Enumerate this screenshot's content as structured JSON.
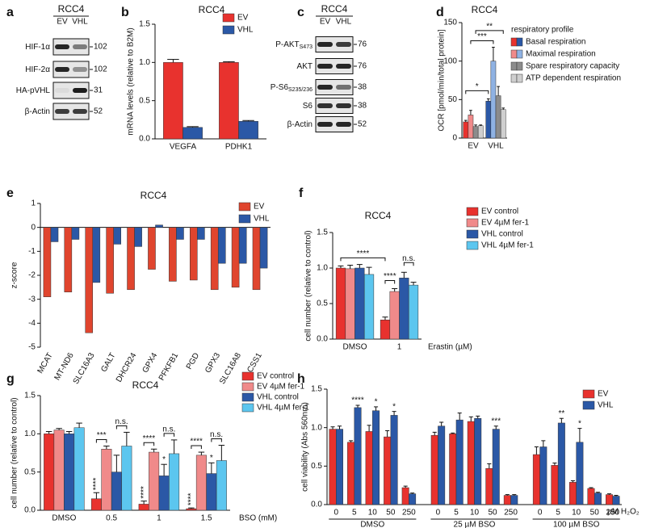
{
  "panel_letters": [
    "a",
    "b",
    "c",
    "d",
    "e",
    "f",
    "g",
    "h"
  ],
  "blots": [
    {
      "title": "RCC4",
      "lanes": [
        "EV",
        "VHL"
      ],
      "rows": [
        {
          "label": "HIF-1α",
          "marker": 102
        },
        {
          "label": "HIF-2α",
          "marker": 102
        },
        {
          "label": "HA-pVHL",
          "marker": 31
        },
        {
          "label": "β-Actin",
          "marker": 52
        }
      ]
    },
    {
      "title": "RCC4",
      "lanes": [
        "EV",
        "VHL"
      ],
      "rows": [
        {
          "label": "P-AKT",
          "sub": "S473",
          "marker": 76
        },
        {
          "label": "AKT",
          "marker": 76
        },
        {
          "label": "P-S6",
          "sub": "S235/236",
          "marker": 38
        },
        {
          "label": "S6",
          "marker": 38
        },
        {
          "label": "β-Actin",
          "marker": 52
        }
      ]
    }
  ],
  "chart_data": [
    {
      "type": "bar",
      "title": "RCC4",
      "ylabel": "mRNA levels (relative to B2M)",
      "categories": [
        "VEGFA",
        "PDHK1"
      ],
      "series": [
        {
          "name": "EV",
          "color": "#e8322e",
          "values": [
            1.0,
            1.0
          ],
          "errors": [
            0.04,
            0.01
          ]
        },
        {
          "name": "VHL",
          "color": "#2b58a6",
          "values": [
            0.15,
            0.23
          ],
          "errors": [
            0.01,
            0.01
          ]
        }
      ],
      "ylim": [
        0,
        1.5
      ],
      "yticks": [
        {
          "value": 0,
          "label": "0.0"
        },
        0.5,
        {
          "value": 1,
          "label": "1.0"
        },
        1.5
      ]
    },
    {
      "type": "bar",
      "title": "RCC4",
      "ylabel": "OCR [pmol/min/total protein]",
      "categories": [
        "EV",
        "VHL"
      ],
      "legend_title": "respiratory profile",
      "series": [
        {
          "name": "Basal respiration",
          "colors": [
            "#e8322e",
            "#2b58a6"
          ],
          "values": [
            21,
            48
          ],
          "errors": [
            2,
            3
          ]
        },
        {
          "name": "Maximal respiration",
          "colors": [
            "#f08a8a",
            "#8fb2e3"
          ],
          "values": [
            30,
            100
          ],
          "errors": [
            6,
            18
          ]
        },
        {
          "name": "Spare respiratory capacity",
          "colors": [
            "#8c8c8c",
            "#8c8c8c"
          ],
          "values": [
            15,
            55
          ],
          "errors": [
            2,
            12
          ]
        },
        {
          "name": "ATP dependent respiration",
          "colors": [
            "#cfcfcf",
            "#cfcfcf"
          ],
          "values": [
            16,
            37
          ],
          "errors": [
            1,
            2
          ]
        }
      ],
      "ylim": [
        0,
        150
      ],
      "yticks": [
        0,
        50,
        100,
        150
      ],
      "annotations": [
        "*",
        "***",
        "**"
      ]
    },
    {
      "type": "bar",
      "title": "RCC4",
      "ylabel": "z-score",
      "categories": [
        "MCAT",
        "MT-ND6",
        "SLC16A3",
        "GALT",
        "DHCR24",
        "GPX4",
        "PFKFB1",
        "PGD",
        "GPX3",
        "SLC16A8",
        "ACSS1"
      ],
      "series": [
        {
          "name": "EV",
          "color": "#e0452e",
          "values": [
            -2.9,
            -2.7,
            -4.4,
            -2.75,
            -2.6,
            -1.75,
            -2.25,
            -2.2,
            -2.6,
            -2.5,
            -2.6
          ]
        },
        {
          "name": "VHL",
          "color": "#2b58a6",
          "values": [
            -0.6,
            -0.5,
            -2.3,
            -0.7,
            -0.8,
            0.1,
            -0.5,
            -0.5,
            -1.5,
            -1.5,
            -1.7
          ]
        }
      ],
      "ylim": [
        -5,
        1
      ],
      "yticks": [
        -5,
        -4,
        -3,
        -2,
        -1,
        0,
        1
      ]
    },
    {
      "type": "bar",
      "title": "RCC4",
      "ylabel": "cell number (relative to control)",
      "xlabel": "Erastin (µM)",
      "categories": [
        "DMSO",
        "1"
      ],
      "series": [
        {
          "name": "EV control",
          "color": "#e8322e",
          "values": [
            1.0,
            0.27
          ],
          "errors": [
            0.03,
            0.04
          ]
        },
        {
          "name": "EV 4µM fer-1",
          "color": "#f08a8a",
          "values": [
            0.99,
            0.67
          ],
          "errors": [
            0.05,
            0.04
          ]
        },
        {
          "name": "VHL control",
          "color": "#2b58a6",
          "values": [
            1.0,
            0.86
          ],
          "errors": [
            0.05,
            0.08
          ]
        },
        {
          "name": "VHL 4µM fer-1",
          "color": "#5cc6ef",
          "values": [
            0.91,
            0.76
          ],
          "errors": [
            0.1,
            0.04
          ]
        }
      ],
      "ylim": [
        0,
        1.5
      ],
      "yticks": [
        {
          "value": 0,
          "label": "0.0"
        },
        0.5,
        {
          "value": 1,
          "label": "1.0"
        },
        1.5
      ],
      "annotations": [
        "****",
        "****",
        "n.s."
      ]
    },
    {
      "type": "bar",
      "title": "RCC4",
      "ylabel": "cell number (relative to control)",
      "xlabel": "BSO (mM)",
      "categories": [
        "DMSO",
        "0.5",
        "1",
        "1.5"
      ],
      "series": [
        {
          "name": "EV control",
          "color": "#e8322e",
          "values": [
            1.0,
            0.15,
            0.08,
            0.02
          ],
          "errors": [
            0.03,
            0.08,
            0.04,
            0.01
          ]
        },
        {
          "name": "EV 4µM fer-1",
          "color": "#f08a8a",
          "values": [
            1.05,
            0.8,
            0.76,
            0.72
          ],
          "errors": [
            0.02,
            0.04,
            0.04,
            0.04
          ]
        },
        {
          "name": "VHL control",
          "color": "#2b58a6",
          "values": [
            1.0,
            0.5,
            0.45,
            0.48
          ],
          "errors": [
            0.03,
            0.22,
            0.15,
            0.14
          ]
        },
        {
          "name": "VHL 4µM fer-1",
          "color": "#5cc6ef",
          "values": [
            1.08,
            0.84,
            0.74,
            0.65
          ],
          "errors": [
            0.06,
            0.18,
            0.18,
            0.2
          ]
        }
      ],
      "ylim": [
        0,
        1.5
      ],
      "yticks": [
        {
          "value": 0,
          "label": "0.0"
        },
        0.5,
        {
          "value": 1,
          "label": "1.0"
        },
        1.5
      ],
      "annotations": [
        "***",
        "n.s.",
        "****",
        "n.s.",
        "****",
        "n.s.",
        "****",
        "****",
        "****",
        "*",
        "*"
      ]
    },
    {
      "type": "bar",
      "ylabel": "cell viability (Abs 560nm)",
      "xlabel": "µM H₂O₂",
      "categories": [
        "0",
        "5",
        "10",
        "50",
        "250",
        "0",
        "5",
        "10",
        "50",
        "250",
        "0",
        "5",
        "10",
        "50",
        "250"
      ],
      "groups": [
        "DMSO",
        "25 µM BSO",
        "100 µM BSO"
      ],
      "series": [
        {
          "name": "EV",
          "color": "#e8322e",
          "values": [
            0.98,
            0.81,
            0.95,
            0.88,
            0.22,
            0.9,
            0.92,
            1.08,
            0.47,
            0.12,
            0.65,
            0.51,
            0.29,
            0.21,
            0.13
          ],
          "errors": [
            0.03,
            0.02,
            0.08,
            0.08,
            0.02,
            0.04,
            0.01,
            0.06,
            0.06,
            0.01,
            0.1,
            0.03,
            0.02,
            0.01,
            0.01
          ]
        },
        {
          "name": "VHL",
          "color": "#2b58a6",
          "values": [
            0.98,
            1.26,
            1.22,
            1.16,
            0.14,
            1.02,
            1.1,
            1.12,
            0.98,
            0.12,
            0.75,
            1.06,
            0.81,
            0.15,
            0.11
          ],
          "errors": [
            0.04,
            0.03,
            0.05,
            0.05,
            0.01,
            0.05,
            0.09,
            0.03,
            0.04,
            0.01,
            0.08,
            0.06,
            0.18,
            0.01,
            0.01
          ]
        }
      ],
      "ylim": [
        0,
        1.5
      ],
      "yticks": [
        {
          "value": 0,
          "label": "0.0"
        },
        0.5,
        {
          "value": 1,
          "label": "1.0"
        },
        1.5
      ],
      "annotations": [
        "****",
        "*",
        "*",
        "***",
        "**",
        "*"
      ]
    }
  ]
}
